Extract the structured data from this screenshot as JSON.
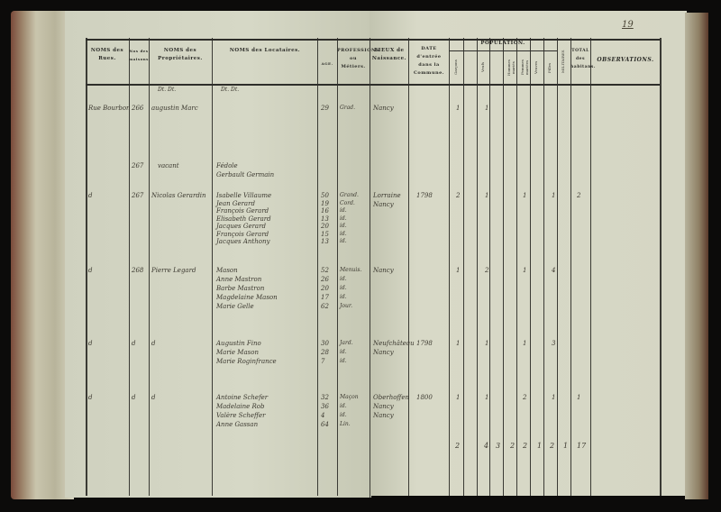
{
  "page_number": "19",
  "headers": {
    "rues": "NOMS des Rues.",
    "numeros": "Nos des maisons.",
    "proprietaires": "NOMS des Propriétaires.",
    "locataires": "NOMS des Locataires.",
    "age": "AGE.",
    "profession": "PROFESSIONS ou Métiers.",
    "lieux": "LIEUX de Naissance.",
    "date": "DATE d'entrée dans la Commune.",
    "population": "POPULATION.",
    "garcons": "Garçons",
    "veufs": "Veufs",
    "hommes_maries": "Hommes mariés",
    "femmes_mariees": "Femmes mariées",
    "veuves": "Veuves",
    "filles": "Filles",
    "militaires": "MILITAIRES",
    "total": "TOTAL des habitans.",
    "observations": "OBSERVATIONS."
  },
  "ditto_marks": [
    "Dt. Dt.",
    "Dt. Dt."
  ],
  "entries": [
    {
      "rue": "Rue Bourbon",
      "numero": "266",
      "proprietaire": "augustin Marc",
      "locataires": [],
      "ages": [
        "29"
      ],
      "professions": [
        "Grad."
      ],
      "lieux": [
        "Nancy"
      ],
      "date": "",
      "counts": [
        "1",
        "1"
      ]
    },
    {
      "rue": "",
      "numero": "267",
      "proprietaire": "vacant",
      "locataires": [
        "Fédole",
        "Gerbault Germain"
      ],
      "ages": [],
      "professions": [],
      "lieux": [],
      "date": "",
      "counts": []
    },
    {
      "rue": "d",
      "numero": "267",
      "proprietaire": "Nicolas Gerardin",
      "locataires": [
        "Isabelle Villaume",
        "Jean Gerard",
        "François Gerard",
        "Elisabeth Gerard",
        "Jacques Gerard",
        "François Gerard",
        "Jacques Anthony"
      ],
      "ages": [
        "50",
        "19",
        "16",
        "13",
        "20",
        "15",
        "13"
      ],
      "professions": [
        "Grand.",
        "Cord.",
        "id.",
        "id.",
        "id.",
        "id.",
        "id."
      ],
      "lieux": [
        "Lorraine",
        "Nancy"
      ],
      "date": "1798",
      "counts": [
        "2",
        "1",
        "1",
        "1",
        "2"
      ]
    },
    {
      "rue": "d",
      "numero": "268",
      "proprietaire": "Pierre Legard",
      "locataires": [
        "Mason",
        "Anne Mastron",
        "Barbe Mastron",
        "Magdelaine Mason",
        "Marie Gelle"
      ],
      "ages": [
        "52",
        "26",
        "20",
        "17",
        "62"
      ],
      "professions": [
        "Menuis.",
        "id.",
        "id.",
        "id.",
        "Jour."
      ],
      "lieux": [
        "Nancy"
      ],
      "date": "",
      "counts": [
        "1",
        "2",
        "1",
        "4"
      ]
    },
    {
      "rue": "d",
      "numero": "d",
      "proprietaire": "d",
      "locataires": [
        "Augustin Fino",
        "Marie Mason",
        "Marie Roginfrance"
      ],
      "ages": [
        "30",
        "28",
        "7"
      ],
      "professions": [
        "Jard.",
        "id.",
        "id."
      ],
      "lieux": [
        "Neufchâteau",
        "Nancy"
      ],
      "date": "1798",
      "counts": [
        "1",
        "1",
        "1",
        "3"
      ]
    },
    {
      "rue": "d",
      "numero": "d",
      "proprietaire": "d",
      "locataires": [
        "Antoine Schefer",
        "Madelaine Rob",
        "Valère Scheffer",
        "Anne Gassan"
      ],
      "ages": [
        "32",
        "36",
        "4",
        "64"
      ],
      "professions": [
        "Maçon",
        "id.",
        "id.",
        "Lin."
      ],
      "lieux": [
        "Oberhoffen",
        "Nancy",
        "Nancy"
      ],
      "date": "1800",
      "counts": [
        "1",
        "1",
        "2",
        "1",
        "1"
      ]
    }
  ],
  "totals": [
    "2",
    "4",
    "3",
    "2",
    "2",
    "1",
    "2",
    "1",
    "17"
  ]
}
